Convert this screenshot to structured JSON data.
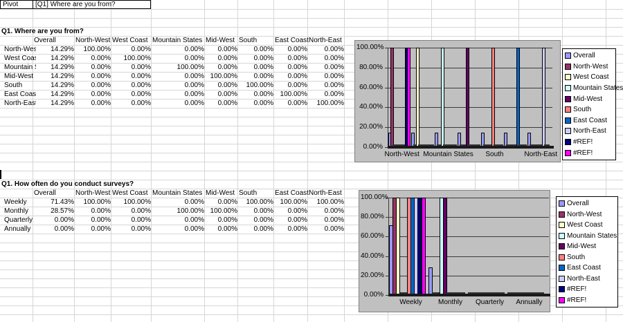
{
  "pivot_row": {
    "label": "Pivot",
    "question": "[Q1] Where are you from?"
  },
  "tables": [
    {
      "title": "Q1. Where are you from?",
      "columns": [
        "Overall",
        "North-West",
        "West Coast",
        "Mountain States",
        "Mid-West",
        "South",
        "East Coast",
        "North-East"
      ],
      "rows": [
        {
          "label": "North-West",
          "values": [
            "14.29%",
            "100.00%",
            "0.00%",
            "0.00%",
            "0.00%",
            "0.00%",
            "0.00%",
            "0.00%"
          ]
        },
        {
          "label": "West Coast",
          "values": [
            "14.29%",
            "0.00%",
            "100.00%",
            "0.00%",
            "0.00%",
            "0.00%",
            "0.00%",
            "0.00%"
          ]
        },
        {
          "label": "Mountain States",
          "values": [
            "14.29%",
            "0.00%",
            "0.00%",
            "100.00%",
            "0.00%",
            "0.00%",
            "0.00%",
            "0.00%"
          ]
        },
        {
          "label": "Mid-West",
          "values": [
            "14.29%",
            "0.00%",
            "0.00%",
            "0.00%",
            "100.00%",
            "0.00%",
            "0.00%",
            "0.00%"
          ]
        },
        {
          "label": "South",
          "values": [
            "14.29%",
            "0.00%",
            "0.00%",
            "0.00%",
            "0.00%",
            "100.00%",
            "0.00%",
            "0.00%"
          ]
        },
        {
          "label": "East Coast",
          "values": [
            "14.29%",
            "0.00%",
            "0.00%",
            "0.00%",
            "0.00%",
            "0.00%",
            "100.00%",
            "0.00%"
          ]
        },
        {
          "label": "North-East",
          "values": [
            "14.29%",
            "0.00%",
            "0.00%",
            "0.00%",
            "0.00%",
            "0.00%",
            "0.00%",
            "100.00%"
          ]
        }
      ]
    },
    {
      "title": "Q1. How often do you conduct surveys?",
      "columns": [
        "Overall",
        "North-West",
        "West Coast",
        "Mountain States",
        "Mid-West",
        "South",
        "East Coast",
        "North-East"
      ],
      "rows": [
        {
          "label": "Weekly",
          "values": [
            "71.43%",
            "100.00%",
            "100.00%",
            "0.00%",
            "0.00%",
            "100.00%",
            "100.00%",
            "100.00%"
          ]
        },
        {
          "label": "Monthly",
          "values": [
            "28.57%",
            "0.00%",
            "0.00%",
            "100.00%",
            "100.00%",
            "0.00%",
            "0.00%",
            "0.00%"
          ]
        },
        {
          "label": "Quarterly",
          "values": [
            "0.00%",
            "0.00%",
            "0.00%",
            "0.00%",
            "0.00%",
            "0.00%",
            "0.00%",
            "0.00%"
          ]
        },
        {
          "label": "Annually",
          "values": [
            "0.00%",
            "0.00%",
            "0.00%",
            "0.00%",
            "0.00%",
            "0.00%",
            "0.00%",
            "0.00%"
          ]
        }
      ]
    }
  ],
  "chart_data": [
    {
      "type": "bar",
      "categories": [
        "North-West",
        "West Coast",
        "Mountain States",
        "Mid-West",
        "South",
        "East Coast",
        "North-East"
      ],
      "x_tick_labels": [
        "North-West",
        "Mountain States",
        "South",
        "North-East"
      ],
      "y_ticks": [
        "100.00%",
        "80.00%",
        "60.00%",
        "40.00%",
        "20.00%",
        "0.00%"
      ],
      "ylim": [
        0,
        100
      ],
      "grid": "on",
      "legend_position": "right",
      "plot_bg": "#c0c0c0",
      "series": [
        {
          "name": "Overall",
          "color": "#9999FF",
          "values": [
            14.29,
            14.29,
            14.29,
            14.29,
            14.29,
            14.29,
            14.29
          ]
        },
        {
          "name": "North-West",
          "color": "#993366",
          "values": [
            100,
            0,
            0,
            0,
            0,
            0,
            0
          ]
        },
        {
          "name": "West Coast",
          "color": "#FFFFCC",
          "values": [
            0,
            100,
            0,
            0,
            0,
            0,
            0
          ]
        },
        {
          "name": "Mountain States",
          "color": "#CCFFFF",
          "values": [
            0,
            0,
            100,
            0,
            0,
            0,
            0
          ]
        },
        {
          "name": "Mid-West",
          "color": "#660066",
          "values": [
            0,
            0,
            0,
            100,
            0,
            0,
            0
          ]
        },
        {
          "name": "South",
          "color": "#FF8080",
          "values": [
            0,
            0,
            0,
            0,
            100,
            0,
            0
          ]
        },
        {
          "name": "East Coast",
          "color": "#0066CC",
          "values": [
            0,
            0,
            0,
            0,
            0,
            100,
            0
          ]
        },
        {
          "name": "North-East",
          "color": "#CCCCFF",
          "values": [
            0,
            0,
            0,
            0,
            0,
            0,
            100
          ]
        },
        {
          "name": "#REF!",
          "color": "#000080",
          "values": [
            100,
            0,
            0,
            0,
            0,
            0,
            0
          ]
        },
        {
          "name": "#REF!",
          "color": "#FF00FF",
          "values": [
            100,
            0,
            0,
            0,
            0,
            0,
            0
          ]
        }
      ]
    },
    {
      "type": "bar",
      "categories": [
        "Weekly",
        "Monthly",
        "Quarterly",
        "Annually"
      ],
      "x_tick_labels": [
        "Weekly",
        "Monthly",
        "Quarterly",
        "Annually"
      ],
      "y_ticks": [
        "100.00%",
        "80.00%",
        "60.00%",
        "40.00%",
        "20.00%",
        "0.00%"
      ],
      "ylim": [
        0,
        100
      ],
      "grid": "on",
      "legend_position": "right",
      "plot_bg": "#c0c0c0",
      "series": [
        {
          "name": "Overall",
          "color": "#9999FF",
          "values": [
            71.43,
            28.57,
            0,
            0
          ]
        },
        {
          "name": "North-West",
          "color": "#993366",
          "values": [
            100,
            0,
            0,
            0
          ]
        },
        {
          "name": "West Coast",
          "color": "#FFFFCC",
          "values": [
            100,
            0,
            0,
            0
          ]
        },
        {
          "name": "Mountain States",
          "color": "#CCFFFF",
          "values": [
            0,
            100,
            0,
            0
          ]
        },
        {
          "name": "Mid-West",
          "color": "#660066",
          "values": [
            0,
            100,
            0,
            0
          ]
        },
        {
          "name": "South",
          "color": "#FF8080",
          "values": [
            100,
            0,
            0,
            0
          ]
        },
        {
          "name": "East Coast",
          "color": "#0066CC",
          "values": [
            100,
            0,
            0,
            0
          ]
        },
        {
          "name": "North-East",
          "color": "#CCCCFF",
          "values": [
            100,
            0,
            0,
            0
          ]
        },
        {
          "name": "#REF!",
          "color": "#000080",
          "values": [
            100,
            0,
            0,
            0
          ]
        },
        {
          "name": "#REF!",
          "color": "#FF00FF",
          "values": [
            100,
            0,
            0,
            0
          ]
        }
      ]
    }
  ]
}
